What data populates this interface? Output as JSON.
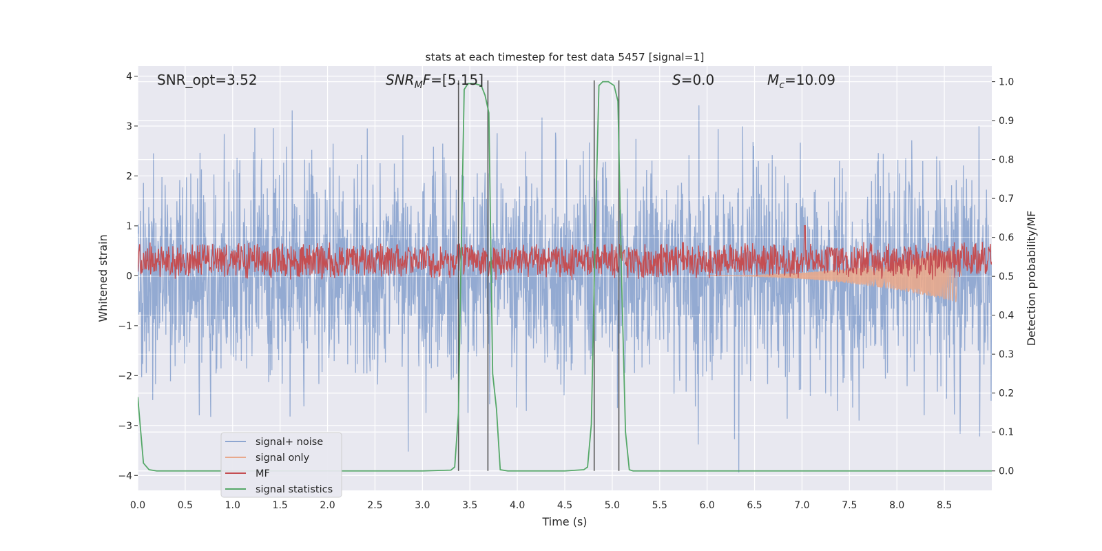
{
  "chart_data": {
    "type": "line",
    "title": "stats at each timestep for test data 5457 [signal=1]",
    "xlabel": "Time (s)",
    "ylabel_left": "Whitened strain",
    "ylabel_right": "Detection probability/MF",
    "xlim": [
      0.0,
      9.0
    ],
    "ylim_left": [
      -4.3,
      4.2
    ],
    "ylim_right": [
      -0.05,
      1.04
    ],
    "x_ticks": [
      "0.0",
      "0.5",
      "1.0",
      "1.5",
      "2.0",
      "2.5",
      "3.0",
      "3.5",
      "4.0",
      "4.5",
      "5.0",
      "5.5",
      "6.0",
      "6.5",
      "7.0",
      "7.5",
      "8.0",
      "8.5"
    ],
    "x_tick_values": [
      0.0,
      0.5,
      1.0,
      1.5,
      2.0,
      2.5,
      3.0,
      3.5,
      4.0,
      4.5,
      5.0,
      5.5,
      6.0,
      6.5,
      7.0,
      7.5,
      8.0,
      8.5
    ],
    "y_ticks_left": [
      "4",
      "3",
      "2",
      "1",
      "0",
      "−1",
      "−2",
      "−3",
      "−4"
    ],
    "y_tick_values_left": [
      4,
      3,
      2,
      1,
      0,
      -1,
      -2,
      -3,
      -4
    ],
    "y_ticks_right": [
      "1.0",
      "0.9",
      "0.8",
      "0.7",
      "0.6",
      "0.5",
      "0.4",
      "0.3",
      "0.2",
      "0.1",
      "0.0"
    ],
    "y_tick_values_right": [
      1.0,
      0.9,
      0.8,
      0.7,
      0.6,
      0.5,
      0.4,
      0.3,
      0.2,
      0.1,
      0.0
    ],
    "grid": true,
    "legend_position": "lower-left",
    "annotations": [
      {
        "id": "snr_opt",
        "text": "SNR_opt=3.52"
      },
      {
        "id": "snr_mf",
        "text": "SNR_MF=[5.15]"
      },
      {
        "id": "s",
        "text": "S=0.0"
      },
      {
        "id": "mc",
        "text": "M_c=10.09"
      }
    ],
    "vertical_lines_x": [
      3.38,
      3.69,
      4.81,
      5.07
    ],
    "series": [
      {
        "name": "signal+ noise",
        "color": "#8ea6d0",
        "axis": "left",
        "description_kind": "noise",
        "amplitude_std": 1.05,
        "x_range": [
          0.0,
          9.0
        ]
      },
      {
        "name": "signal only",
        "color": "#e8a98c",
        "axis": "left",
        "kind": "chirp",
        "x_range": [
          6.0,
          8.68
        ],
        "peak_amplitude": 0.55
      },
      {
        "name": "MF",
        "color": "#c44e52",
        "axis": "right",
        "kind": "noise",
        "baseline": 0.54,
        "amplitude": 0.05,
        "spike_x": 7.03,
        "spike_y": 0.59
      },
      {
        "name": "signal statistics",
        "color": "#55a868",
        "axis": "right",
        "x": [
          0.0,
          0.06,
          0.12,
          0.2,
          0.5,
          1.0,
          2.0,
          2.5,
          3.0,
          3.3,
          3.34,
          3.38,
          3.4,
          3.44,
          3.48,
          3.55,
          3.62,
          3.66,
          3.7,
          3.74,
          3.78,
          3.82,
          3.9,
          4.2,
          4.5,
          4.7,
          4.74,
          4.78,
          4.82,
          4.86,
          4.9,
          4.96,
          5.02,
          5.06,
          5.1,
          5.14,
          5.18,
          5.22,
          5.3,
          6.0,
          7.0,
          8.0,
          8.5,
          9.0
        ],
        "y": [
          0.19,
          0.02,
          0.003,
          0.0,
          0.0,
          0.0,
          0.0,
          0.0,
          0.0,
          0.002,
          0.01,
          0.15,
          0.45,
          0.98,
          0.995,
          0.995,
          0.99,
          0.965,
          0.92,
          0.25,
          0.16,
          0.003,
          0.0,
          0.0,
          0.0,
          0.003,
          0.01,
          0.12,
          0.6,
          0.99,
          1.0,
          1.0,
          0.99,
          0.95,
          0.48,
          0.1,
          0.003,
          0.0,
          0.0,
          0.0,
          0.0,
          0.0,
          0.0,
          0.0
        ]
      }
    ]
  }
}
